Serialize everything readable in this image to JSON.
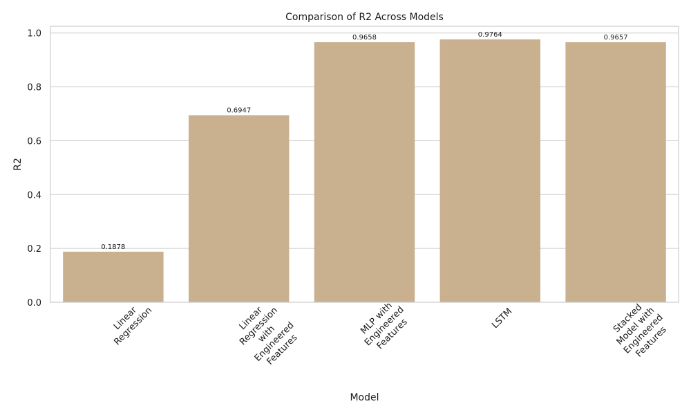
{
  "chart_data": {
    "type": "bar",
    "title": "Comparison of R2 Across Models",
    "xlabel": "Model",
    "ylabel": "R2",
    "categories": [
      "Linear\nRegression",
      "Linear\nRegression\nwith\nEngineered\nFeatures",
      "MLP with\nEngineered\nFeatures",
      "LSTM",
      "Stacked\nModel with\nEngineered\nFeatures"
    ],
    "values": [
      0.1878,
      0.6947,
      0.9658,
      0.9764,
      0.9657
    ],
    "value_labels": [
      "0.1878",
      "0.6947",
      "0.9658",
      "0.9764",
      "0.9657"
    ],
    "ylim": [
      0,
      1.025
    ],
    "yticks": [
      0.0,
      0.2,
      0.4,
      0.6,
      0.8,
      1.0
    ],
    "ytick_labels": [
      "0.0",
      "0.2",
      "0.4",
      "0.6",
      "0.8",
      "1.0"
    ],
    "bar_color": "#c9b190",
    "grid": true,
    "grid_color": "#cccccc",
    "xtick_rotation_deg": 45
  }
}
